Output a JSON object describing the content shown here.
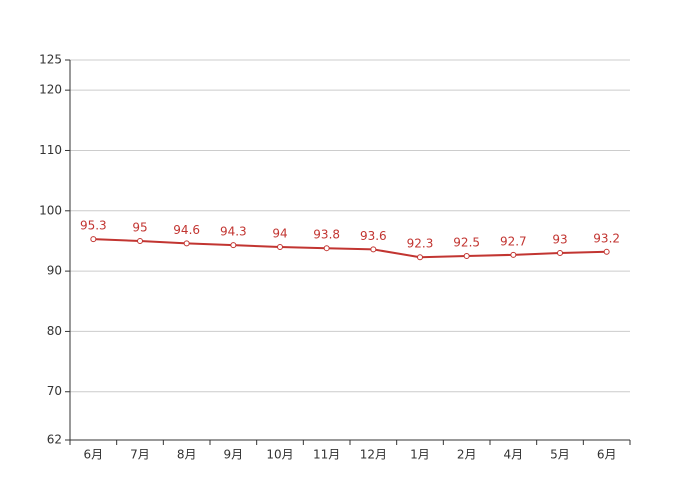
{
  "chart_data": {
    "type": "line",
    "categories": [
      "6月",
      "7月",
      "8月",
      "9月",
      "10月",
      "11月",
      "12月",
      "1月",
      "2月",
      "4月",
      "5月",
      "6月"
    ],
    "values": [
      95.3,
      95,
      94.6,
      94.3,
      94,
      93.8,
      93.6,
      92.3,
      92.5,
      92.7,
      93,
      93.2
    ],
    "color": "#c23531",
    "ylim": [
      62,
      125
    ],
    "yticks": [
      62,
      70,
      80,
      90,
      100,
      110,
      120,
      125
    ],
    "grid": true
  }
}
